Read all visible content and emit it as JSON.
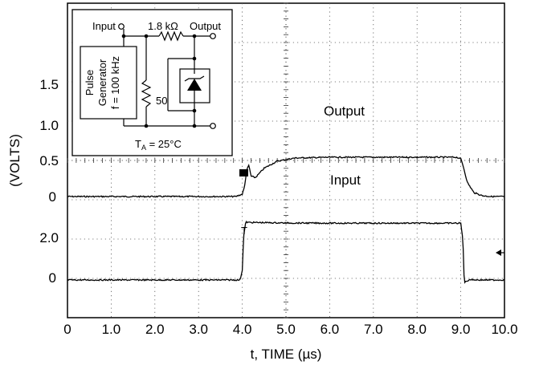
{
  "chart_data": {
    "type": "line",
    "xlabel": "t, TIME (µs)",
    "ylabel": "(VOLTS)",
    "x_ticks": [
      "0",
      "1.0",
      "2.0",
      "3.0",
      "4.0",
      "5.0",
      "6.0",
      "7.0",
      "8.0",
      "9.0",
      "10.0"
    ],
    "xlim": [
      0,
      10
    ],
    "grid": "dotted 10 x 8 divisions, center cross-hair",
    "y_ticks_output": [
      "0",
      "0.5",
      "1.0",
      "1.5"
    ],
    "y_ticks_input": [
      "0",
      "2.0"
    ],
    "annotations": {
      "output": "Output",
      "input": "Input"
    },
    "output_trace": {
      "x": [
        0,
        3.85,
        4.0,
        4.05,
        4.1,
        4.15,
        4.2,
        4.3,
        4.5,
        4.8,
        5.2,
        6.0,
        7.0,
        8.0,
        8.9,
        9.0,
        9.05,
        9.15,
        9.3,
        9.5,
        9.7,
        10.0
      ],
      "y": [
        0,
        0,
        0.03,
        0.12,
        0.33,
        0.4,
        0.26,
        0.24,
        0.36,
        0.45,
        0.49,
        0.5,
        0.5,
        0.5,
        0.5,
        0.48,
        0.4,
        0.18,
        0.05,
        0.01,
        0,
        0
      ],
      "baseline_label": "0"
    },
    "input_trace": {
      "x": [
        0,
        3.95,
        4.0,
        4.03,
        4.08,
        4.12,
        5.0,
        6.0,
        7.0,
        8.0,
        9.0,
        9.05,
        9.08,
        9.12,
        9.2,
        9.4,
        10.0
      ],
      "y": [
        0,
        0,
        0.5,
        2.2,
        2.95,
        2.93,
        2.9,
        2.89,
        2.89,
        2.89,
        2.89,
        2.0,
        -0.15,
        -0.08,
        0.02,
        0,
        0
      ],
      "baseline_label": "0"
    }
  },
  "schematic": {
    "input_label": "Input",
    "output_label": "Output",
    "series_resistor": "1.8 kΩ",
    "shunt_resistor": "50",
    "generator_line1": "Pulse",
    "generator_line2": "Generator",
    "generator_line3": "f = 100 kHz",
    "temperature": "T",
    "temperature_sub": "A",
    "temperature_value": " = 25°C"
  },
  "colors": {
    "trace": "#000000",
    "grid": "#555555",
    "background": "#ffffff"
  }
}
